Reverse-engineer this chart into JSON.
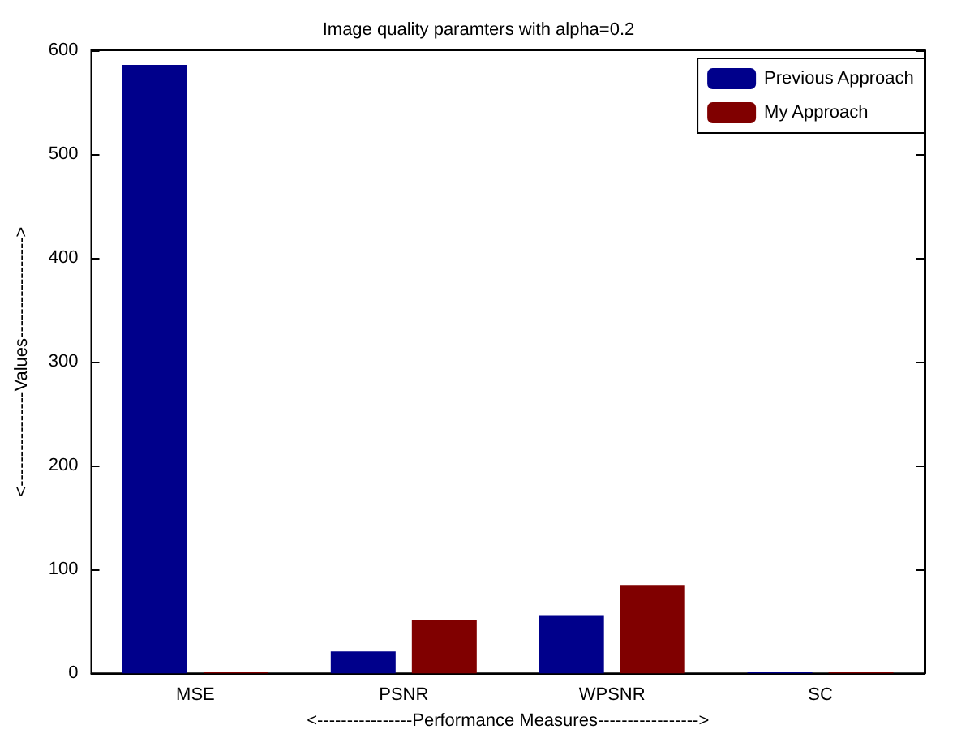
{
  "chart_data": {
    "type": "bar",
    "title": "Image quality paramters with alpha=0.2",
    "xlabel": "<----------------Performance Measures----------------->",
    "ylabel": "<----------------Values----------------->",
    "categories": [
      "MSE",
      "PSNR",
      "WPSNR",
      "SC"
    ],
    "series": [
      {
        "name": "Previous Approach",
        "color": "#00008b",
        "values": [
          586,
          21,
          56,
          1
        ]
      },
      {
        "name": "My Approach",
        "color": "#800000",
        "values": [
          1,
          51,
          85,
          1
        ]
      }
    ],
    "ylim": [
      0,
      600
    ],
    "yticks": [
      0,
      100,
      200,
      300,
      400,
      500,
      600
    ],
    "grid": false,
    "legend": "top right"
  }
}
